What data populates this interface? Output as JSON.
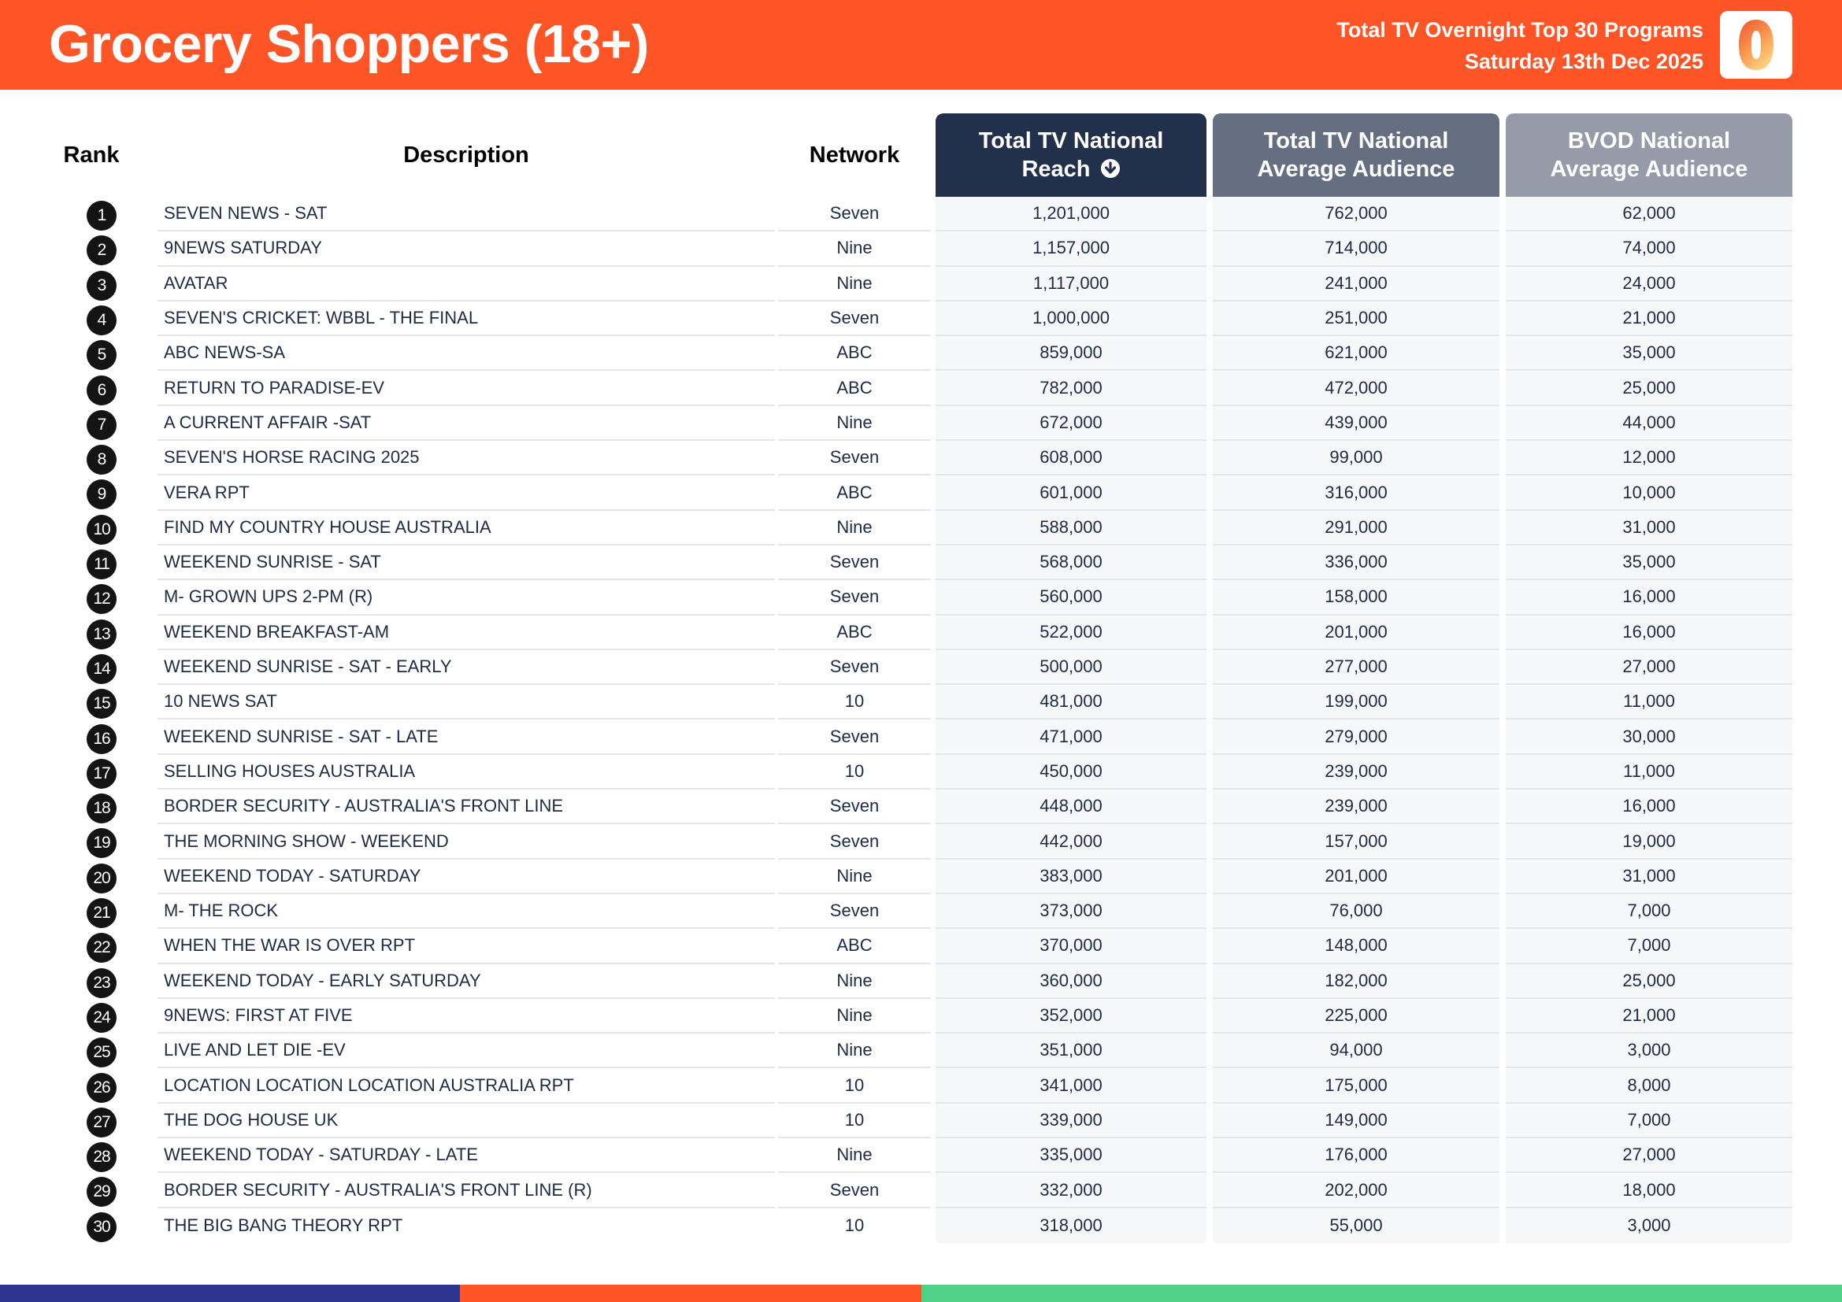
{
  "header": {
    "title": "Grocery Shoppers (18+)",
    "subtitle_line1": "Total TV Overnight Top 30 Programs",
    "subtitle_line2": "Saturday 13th Dec 2025",
    "logo_icon": "oztam-zero-logo",
    "background_color": "#ff5526"
  },
  "columns": {
    "rank": "Rank",
    "description": "Description",
    "network": "Network",
    "metric1_line1": "Total TV National",
    "metric1_line2": "Reach",
    "metric1_sort_icon": "sort-descending-circle-arrow",
    "metric2_line1": "Total TV National",
    "metric2_line2": "Average Audience",
    "metric3_line1": "BVOD National",
    "metric3_line2": "Average Audience"
  },
  "rows": [
    {
      "rank": "1",
      "description": "SEVEN NEWS - SAT",
      "network": "Seven",
      "reach": "1,201,000",
      "avg_audience": "762,000",
      "bvod": "62,000"
    },
    {
      "rank": "2",
      "description": "9NEWS SATURDAY",
      "network": "Nine",
      "reach": "1,157,000",
      "avg_audience": "714,000",
      "bvod": "74,000"
    },
    {
      "rank": "3",
      "description": "AVATAR",
      "network": "Nine",
      "reach": "1,117,000",
      "avg_audience": "241,000",
      "bvod": "24,000"
    },
    {
      "rank": "4",
      "description": "SEVEN'S CRICKET: WBBL - THE FINAL",
      "network": "Seven",
      "reach": "1,000,000",
      "avg_audience": "251,000",
      "bvod": "21,000"
    },
    {
      "rank": "5",
      "description": "ABC NEWS-SA",
      "network": "ABC",
      "reach": "859,000",
      "avg_audience": "621,000",
      "bvod": "35,000"
    },
    {
      "rank": "6",
      "description": "RETURN TO PARADISE-EV",
      "network": "ABC",
      "reach": "782,000",
      "avg_audience": "472,000",
      "bvod": "25,000"
    },
    {
      "rank": "7",
      "description": "A CURRENT AFFAIR -SAT",
      "network": "Nine",
      "reach": "672,000",
      "avg_audience": "439,000",
      "bvod": "44,000"
    },
    {
      "rank": "8",
      "description": "SEVEN'S HORSE RACING 2025",
      "network": "Seven",
      "reach": "608,000",
      "avg_audience": "99,000",
      "bvod": "12,000"
    },
    {
      "rank": "9",
      "description": "VERA RPT",
      "network": "ABC",
      "reach": "601,000",
      "avg_audience": "316,000",
      "bvod": "10,000"
    },
    {
      "rank": "10",
      "description": "FIND MY COUNTRY HOUSE AUSTRALIA",
      "network": "Nine",
      "reach": "588,000",
      "avg_audience": "291,000",
      "bvod": "31,000"
    },
    {
      "rank": "11",
      "description": "WEEKEND SUNRISE - SAT",
      "network": "Seven",
      "reach": "568,000",
      "avg_audience": "336,000",
      "bvod": "35,000"
    },
    {
      "rank": "12",
      "description": "M- GROWN UPS 2-PM (R)",
      "network": "Seven",
      "reach": "560,000",
      "avg_audience": "158,000",
      "bvod": "16,000"
    },
    {
      "rank": "13",
      "description": "WEEKEND BREAKFAST-AM",
      "network": "ABC",
      "reach": "522,000",
      "avg_audience": "201,000",
      "bvod": "16,000"
    },
    {
      "rank": "14",
      "description": "WEEKEND SUNRISE - SAT - EARLY",
      "network": "Seven",
      "reach": "500,000",
      "avg_audience": "277,000",
      "bvod": "27,000"
    },
    {
      "rank": "15",
      "description": "10 NEWS SAT",
      "network": "10",
      "reach": "481,000",
      "avg_audience": "199,000",
      "bvod": "11,000"
    },
    {
      "rank": "16",
      "description": "WEEKEND SUNRISE - SAT - LATE",
      "network": "Seven",
      "reach": "471,000",
      "avg_audience": "279,000",
      "bvod": "30,000"
    },
    {
      "rank": "17",
      "description": "SELLING HOUSES AUSTRALIA",
      "network": "10",
      "reach": "450,000",
      "avg_audience": "239,000",
      "bvod": "11,000"
    },
    {
      "rank": "18",
      "description": "BORDER SECURITY - AUSTRALIA'S FRONT LINE",
      "network": "Seven",
      "reach": "448,000",
      "avg_audience": "239,000",
      "bvod": "16,000"
    },
    {
      "rank": "19",
      "description": "THE MORNING SHOW - WEEKEND",
      "network": "Seven",
      "reach": "442,000",
      "avg_audience": "157,000",
      "bvod": "19,000"
    },
    {
      "rank": "20",
      "description": "WEEKEND TODAY - SATURDAY",
      "network": "Nine",
      "reach": "383,000",
      "avg_audience": "201,000",
      "bvod": "31,000"
    },
    {
      "rank": "21",
      "description": "M- THE ROCK",
      "network": "Seven",
      "reach": "373,000",
      "avg_audience": "76,000",
      "bvod": "7,000"
    },
    {
      "rank": "22",
      "description": "WHEN THE WAR IS OVER RPT",
      "network": "ABC",
      "reach": "370,000",
      "avg_audience": "148,000",
      "bvod": "7,000"
    },
    {
      "rank": "23",
      "description": "WEEKEND TODAY - EARLY SATURDAY",
      "network": "Nine",
      "reach": "360,000",
      "avg_audience": "182,000",
      "bvod": "25,000"
    },
    {
      "rank": "24",
      "description": "9NEWS: FIRST AT FIVE",
      "network": "Nine",
      "reach": "352,000",
      "avg_audience": "225,000",
      "bvod": "21,000"
    },
    {
      "rank": "25",
      "description": "LIVE AND LET DIE -EV",
      "network": "Nine",
      "reach": "351,000",
      "avg_audience": "94,000",
      "bvod": "3,000"
    },
    {
      "rank": "26",
      "description": "LOCATION LOCATION LOCATION AUSTRALIA RPT",
      "network": "10",
      "reach": "341,000",
      "avg_audience": "175,000",
      "bvod": "8,000"
    },
    {
      "rank": "27",
      "description": "THE DOG HOUSE UK",
      "network": "10",
      "reach": "339,000",
      "avg_audience": "149,000",
      "bvod": "7,000"
    },
    {
      "rank": "28",
      "description": "WEEKEND TODAY - SATURDAY - LATE",
      "network": "Nine",
      "reach": "335,000",
      "avg_audience": "176,000",
      "bvod": "27,000"
    },
    {
      "rank": "29",
      "description": "BORDER SECURITY - AUSTRALIA'S FRONT LINE (R)",
      "network": "Seven",
      "reach": "332,000",
      "avg_audience": "202,000",
      "bvod": "18,000"
    },
    {
      "rank": "30",
      "description": "THE BIG BANG THEORY RPT",
      "network": "10",
      "reach": "318,000",
      "avg_audience": "55,000",
      "bvod": "3,000"
    }
  ],
  "footer": {
    "bar_colors": [
      "#2b3590",
      "#ff5526",
      "#4fd187"
    ]
  }
}
